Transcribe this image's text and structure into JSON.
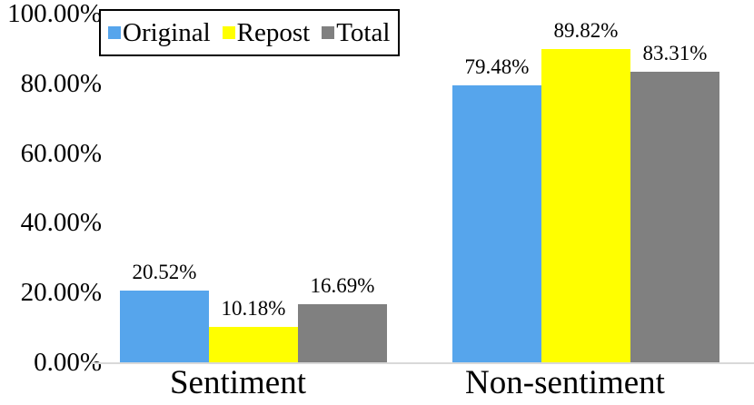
{
  "chart_data": {
    "type": "bar",
    "title": "",
    "categories": [
      "Sentiment",
      "Non-sentiment"
    ],
    "series": [
      {
        "name": "Original",
        "color": "#56A5EC",
        "values": [
          20.52,
          79.48
        ],
        "labels": [
          "20.52%",
          "79.48%"
        ]
      },
      {
        "name": "Repost",
        "color": "#FFFF00",
        "values": [
          10.18,
          89.82
        ],
        "labels": [
          "10.18%",
          "89.82%"
        ]
      },
      {
        "name": "Total",
        "color": "#808080",
        "values": [
          16.69,
          83.31
        ],
        "labels": [
          "16.69%",
          "83.31%"
        ]
      }
    ],
    "yticks": [
      "100.00%",
      "80.00%",
      "60.00%",
      "40.00%",
      "20.00%",
      "0.00%"
    ],
    "ylabel": "",
    "xlabel": "",
    "ylim": [
      0,
      100
    ],
    "grid": false,
    "legend_position": "top-left",
    "legend_border_color": "#000000",
    "axis_line_color": "#D9D9D9",
    "text_color": "#000000",
    "background_color": "#FFFFFF"
  }
}
